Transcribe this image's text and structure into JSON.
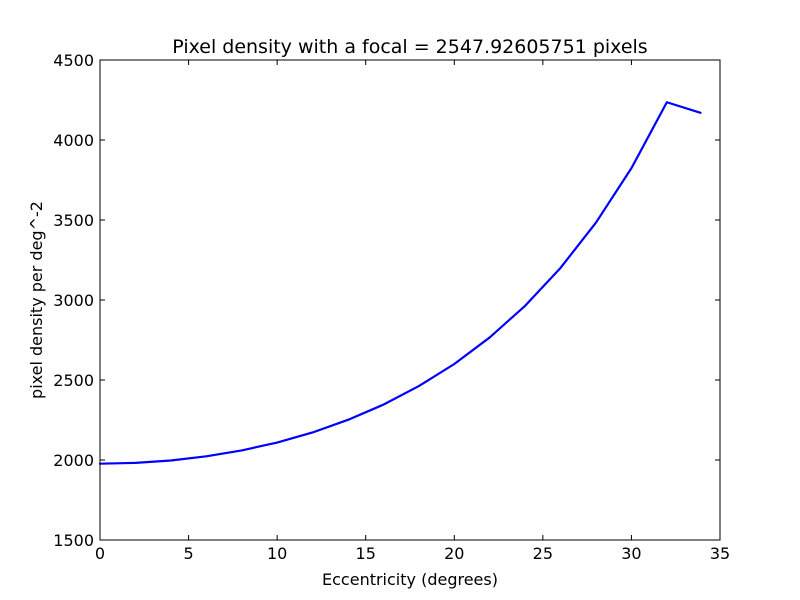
{
  "chart_data": {
    "type": "line",
    "title": "Pixel density with a focal = 2547.92605751 pixels",
    "xlabel": "Eccentricity (degrees)",
    "ylabel": "pixel density per deg^-2",
    "xlim": [
      0,
      35
    ],
    "ylim": [
      1500,
      4500
    ],
    "xticks": [
      "0",
      "5",
      "10",
      "15",
      "20",
      "25",
      "30",
      "35"
    ],
    "yticks": [
      "1500",
      "2000",
      "2500",
      "3000",
      "3500",
      "4000",
      "4500"
    ],
    "grid": false,
    "legend": "none",
    "series": [
      {
        "color": "#0000ff",
        "x": [
          0,
          2,
          4,
          6,
          8,
          10,
          12,
          14,
          16,
          18,
          20,
          22,
          24,
          26,
          28,
          30,
          32,
          33.9
        ],
        "y": [
          1977,
          1982,
          1997,
          2023,
          2060,
          2109,
          2172,
          2251,
          2346,
          2462,
          2600,
          2766,
          2964,
          3201,
          3484,
          3824,
          4236,
          4170
        ]
      }
    ]
  }
}
